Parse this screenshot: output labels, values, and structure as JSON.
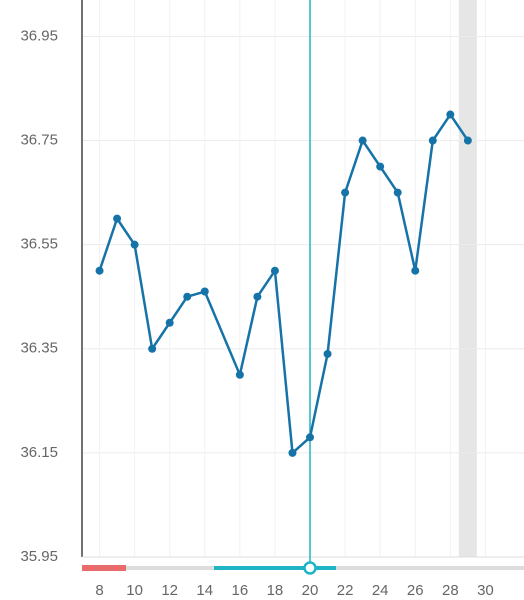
{
  "chart_data": {
    "type": "line",
    "x": [
      8,
      9,
      10,
      11,
      12,
      13,
      14,
      16,
      17,
      18,
      19,
      20,
      21,
      22,
      23,
      24,
      25,
      26,
      27,
      28,
      29
    ],
    "series": [
      {
        "color": "#1673a8",
        "values": [
          36.5,
          36.6,
          36.55,
          36.35,
          36.4,
          36.45,
          36.46,
          36.3,
          36.45,
          36.5,
          36.15,
          36.18,
          36.34,
          36.65,
          36.75,
          36.7,
          36.65,
          36.5,
          36.75,
          36.8,
          36.75
        ]
      }
    ],
    "xlim": [
      7,
      32.2
    ],
    "ylim": [
      35.95,
      37.02
    ],
    "xticks": [
      8,
      10,
      12,
      14,
      16,
      18,
      20,
      22,
      24,
      26,
      28,
      30
    ],
    "yticks": [
      35.95,
      36.15,
      36.35,
      36.55,
      36.75,
      36.95
    ],
    "cursor_x": 20,
    "cursor_color": "#1fb5c4",
    "highlight_x": 29,
    "grid": true
  }
}
